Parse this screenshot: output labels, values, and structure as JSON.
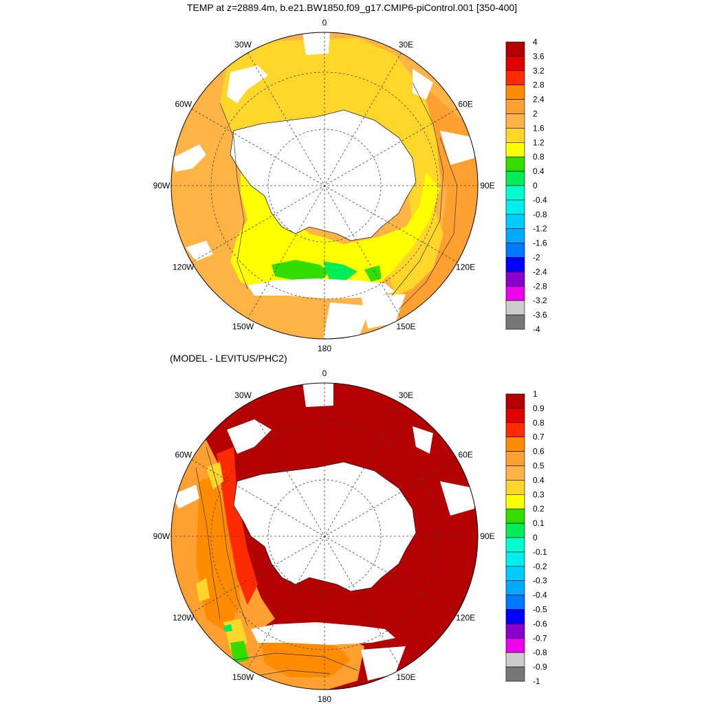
{
  "figure": {
    "title": "TEMP at z=2889.4m, b.e21.BW1850.f09_g17.CMIP6-piControl.001 [350-400]",
    "subtitle": "(MODEL - LEVITUS/PHC2)"
  },
  "map": {
    "projection": "south-polar-stereographic",
    "longitude_labels": [
      "0",
      "30E",
      "60E",
      "90E",
      "120E",
      "150E",
      "180",
      "150W",
      "120W",
      "90W",
      "60W",
      "30W"
    ],
    "grid_lines": "dashed"
  },
  "panels": [
    {
      "id": "model",
      "field": "TEMP",
      "colorbar": {
        "labels": [
          "4",
          "3.6",
          "3.2",
          "2.8",
          "2.4",
          "2",
          "1.6",
          "1.2",
          "0.8",
          "0.4",
          "0",
          "-0.4",
          "-0.8",
          "-1.2",
          "-1.6",
          "-2",
          "-2.4",
          "-2.8",
          "-3.2",
          "-3.6",
          "-4"
        ],
        "colors": [
          "#b40000",
          "#e00000",
          "#ff2a00",
          "#ff8c00",
          "#ffa030",
          "#ffb445",
          "#ffd72a",
          "#ffff00",
          "#33dd00",
          "#00ee55",
          "#00ffcc",
          "#00eeee",
          "#00ccff",
          "#00aaff",
          "#0077ff",
          "#0000ff",
          "#8800cc",
          "#ee00ee",
          "#cccccc",
          "#777777"
        ]
      }
    },
    {
      "id": "difference",
      "field": "MODEL - LEVITUS/PHC2",
      "colorbar": {
        "labels": [
          "1",
          "0.9",
          "0.8",
          "0.7",
          "0.6",
          "0.5",
          "0.4",
          "0.3",
          "0.2",
          "0.1",
          "0",
          "-0.1",
          "-0.2",
          "-0.3",
          "-0.4",
          "-0.5",
          "-0.6",
          "-0.7",
          "-0.8",
          "-0.9",
          "-1"
        ],
        "colors": [
          "#b40000",
          "#e00000",
          "#ff2a00",
          "#ff8c00",
          "#ffa030",
          "#ffb445",
          "#ffd72a",
          "#ffff00",
          "#33dd00",
          "#00ee55",
          "#00ffcc",
          "#00eeee",
          "#00ccff",
          "#00aaff",
          "#0077ff",
          "#0000ff",
          "#8800cc",
          "#ee00ee",
          "#cccccc",
          "#777777"
        ]
      }
    }
  ]
}
